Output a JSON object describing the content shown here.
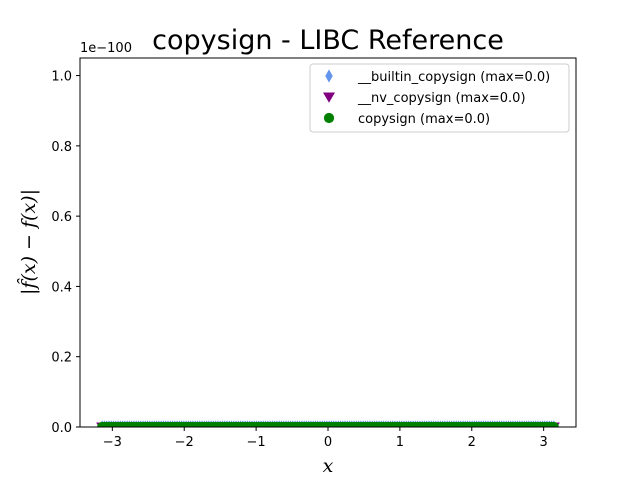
{
  "chart_data": {
    "type": "scatter",
    "title": "copysign - LIBC Reference",
    "xlabel": "x",
    "ylabel": "|f̂(x) − f(x)|",
    "y_offset_label": "1e−100",
    "xlim": [
      -3.45,
      3.45
    ],
    "ylim": [
      0,
      1.05
    ],
    "xticks": [
      -3,
      -2,
      -1,
      0,
      1,
      2,
      3
    ],
    "xtick_labels": [
      "−3",
      "−2",
      "−1",
      "0",
      "1",
      "2",
      "3"
    ],
    "yticks": [
      0.0,
      0.2,
      0.4,
      0.6,
      0.8,
      1.0
    ],
    "ytick_labels": [
      "0.0",
      "0.2",
      "0.4",
      "0.6",
      "0.8",
      "1.0"
    ],
    "grid": false,
    "legend_position": "top-right",
    "x_range": [
      -3.14159,
      3.14159
    ],
    "point_count": 200,
    "series": [
      {
        "name": "__builtin_copysign (max=0.0)",
        "marker": "diamond",
        "color": "#6495ed",
        "y": 0
      },
      {
        "name": "__nv_copysign (max=0.0)",
        "marker": "triangle-down",
        "color": "#800080",
        "y": 0
      },
      {
        "name": "copysign (max=0.0)",
        "marker": "circle",
        "color": "#008000",
        "y": 0
      }
    ]
  }
}
